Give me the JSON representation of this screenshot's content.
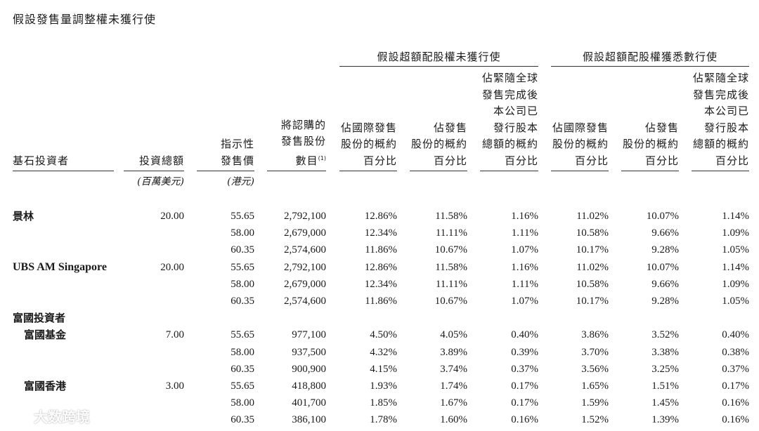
{
  "page_title": "假設發售量調整權未獲行使",
  "group_headers": {
    "not_exercised": "假設超額配股權未獲行使",
    "fully_exercised": "假設超額配股權獲悉數行使"
  },
  "columns": {
    "investor": "基石投資者",
    "amount": "投資總額",
    "price": "指示性\n發售價",
    "shares": "將認購的\n發售股份\n數目",
    "shares_note": "(1)",
    "pct_intl_a": "佔國際發售\n股份的概約\n百分比",
    "pct_offer_a": "佔發售\n股份的概約\n百分比",
    "pct_total_a": "佔緊隨全球\n發售完成後\n本公司已\n發行股本\n總額的概約\n百分比",
    "pct_intl_b": "佔國際發售\n股份的概約\n百分比",
    "pct_offer_b": "佔發售\n股份的概約\n百分比",
    "pct_total_b": "佔緊隨全球\n發售完成後\n本公司已\n發行股本\n總額的概約\n百分比"
  },
  "units": {
    "amount": "(百萬美元)",
    "price": "(港元)"
  },
  "rows": [
    {
      "name": "景林",
      "amount": "20.00",
      "price": "55.65",
      "shares": "2,792,100",
      "a1": "12.86%",
      "a2": "11.58%",
      "a3": "1.16%",
      "b1": "11.02%",
      "b2": "10.07%",
      "b3": "1.14%"
    },
    {
      "name": "",
      "amount": "",
      "price": "58.00",
      "shares": "2,679,000",
      "a1": "12.34%",
      "a2": "11.11%",
      "a3": "1.11%",
      "b1": "10.58%",
      "b2": "9.66%",
      "b3": "1.09%"
    },
    {
      "name": "",
      "amount": "",
      "price": "60.35",
      "shares": "2,574,600",
      "a1": "11.86%",
      "a2": "10.67%",
      "a3": "1.07%",
      "b1": "10.17%",
      "b2": "9.28%",
      "b3": "1.05%"
    },
    {
      "name": "UBS AM Singapore",
      "amount": "20.00",
      "price": "55.65",
      "shares": "2,792,100",
      "a1": "12.86%",
      "a2": "11.58%",
      "a3": "1.16%",
      "b1": "11.02%",
      "b2": "10.07%",
      "b3": "1.14%"
    },
    {
      "name": "",
      "amount": "",
      "price": "58.00",
      "shares": "2,679,000",
      "a1": "12.34%",
      "a2": "11.11%",
      "a3": "1.11%",
      "b1": "10.58%",
      "b2": "9.66%",
      "b3": "1.09%"
    },
    {
      "name": "",
      "amount": "",
      "price": "60.35",
      "shares": "2,574,600",
      "a1": "11.86%",
      "a2": "10.67%",
      "a3": "1.07%",
      "b1": "10.17%",
      "b2": "9.28%",
      "b3": "1.05%"
    },
    {
      "name": "富國投資者",
      "amount": "",
      "price": "",
      "shares": "",
      "a1": "",
      "a2": "",
      "a3": "",
      "b1": "",
      "b2": "",
      "b3": ""
    },
    {
      "name": "富國基金",
      "sub": true,
      "amount": "7.00",
      "price": "55.65",
      "shares": "977,100",
      "a1": "4.50%",
      "a2": "4.05%",
      "a3": "0.40%",
      "b1": "3.86%",
      "b2": "3.52%",
      "b3": "0.40%"
    },
    {
      "name": "",
      "amount": "",
      "price": "58.00",
      "shares": "937,500",
      "a1": "4.32%",
      "a2": "3.89%",
      "a3": "0.39%",
      "b1": "3.70%",
      "b2": "3.38%",
      "b3": "0.38%"
    },
    {
      "name": "",
      "amount": "",
      "price": "60.35",
      "shares": "900,900",
      "a1": "4.15%",
      "a2": "3.74%",
      "a3": "0.37%",
      "b1": "3.56%",
      "b2": "3.25%",
      "b3": "0.37%"
    },
    {
      "name": "富國香港",
      "sub": true,
      "amount": "3.00",
      "price": "55.65",
      "shares": "418,800",
      "a1": "1.93%",
      "a2": "1.74%",
      "a3": "0.17%",
      "b1": "1.65%",
      "b2": "1.51%",
      "b3": "0.17%"
    },
    {
      "name": "",
      "amount": "",
      "price": "58.00",
      "shares": "401,700",
      "a1": "1.85%",
      "a2": "1.67%",
      "a3": "0.17%",
      "b1": "1.59%",
      "b2": "1.45%",
      "b3": "0.16%"
    },
    {
      "name": "",
      "amount": "",
      "price": "60.35",
      "shares": "386,100",
      "a1": "1.78%",
      "a2": "1.60%",
      "a3": "0.16%",
      "b1": "1.52%",
      "b2": "1.39%",
      "b3": "0.16%"
    }
  ],
  "watermark": {
    "icon": "logo-icon",
    "text": "大数跨境"
  }
}
